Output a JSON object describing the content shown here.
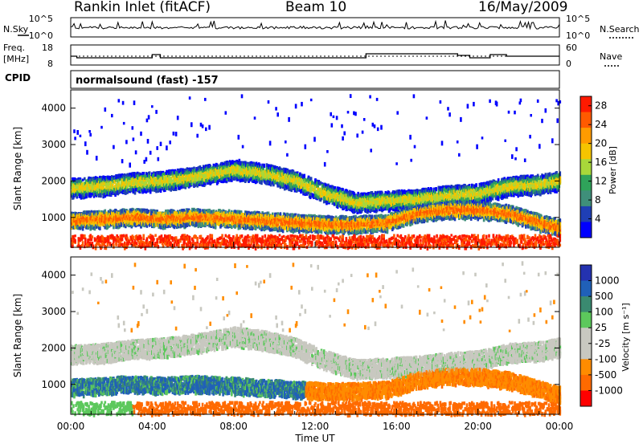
{
  "header": {
    "radar": "Rankin Inlet (fitACF)",
    "beam": "Beam 10",
    "date": "16/May/2009"
  },
  "top_panels": {
    "nsky_label": "N.Sky",
    "nsky_ticks": [
      "10^5",
      "10^0"
    ],
    "nsearch_label": "N.Search",
    "nsearch_ticks": [
      "10^5",
      "10^0"
    ],
    "freq_label": "Freq.",
    "freq_unit": "[MHz]",
    "freq_ticks": [
      "18",
      "8"
    ],
    "nave_label": "Nave",
    "nave_ticks": [
      "60",
      "0"
    ],
    "cpid_label": "CPID",
    "cpid_value": "normalsound (fast) -157"
  },
  "colors": {
    "power_scale": [
      "#0000ff",
      "#1f3fb5",
      "#3f8f7a",
      "#2fa35a",
      "#a8d83a",
      "#f5c400",
      "#ff9b00",
      "#ff5a00",
      "#ff1a00"
    ],
    "velocity_scale": [
      "#2432b0",
      "#2060b8",
      "#3a8a70",
      "#5cc85c",
      "#c8c8c0",
      "#c8c8c0",
      "#ff8c00",
      "#ff6a00",
      "#ff0000"
    ]
  },
  "chart_data": [
    {
      "type": "heatmap",
      "title": "",
      "xlabel": "",
      "ylabel": "Slant Range [km]",
      "x_range_hours": [
        0,
        24
      ],
      "ylim": [
        180,
        4500
      ],
      "y_ticks": [
        "1000",
        "2000",
        "3000",
        "4000"
      ],
      "colorbar": {
        "label": "Power [dB]",
        "ticks": [
          "4",
          "8",
          "12",
          "16",
          "20",
          "24",
          "28"
        ],
        "range": [
          0,
          30
        ]
      },
      "bands": [
        {
          "name": "upper",
          "center_km": [
            1850,
            1900,
            2000,
            2050,
            2150,
            2350,
            2250,
            2050,
            1700,
            1450,
            1500,
            1550,
            1650,
            1700,
            1900,
            1950,
            2050
          ],
          "hours": [
            0,
            1.5,
            3,
            4.5,
            6,
            8,
            9.5,
            11,
            12.5,
            14,
            15.5,
            17,
            18.5,
            20,
            21.5,
            23,
            24
          ]
        },
        {
          "name": "lower",
          "center_km": [
            950,
            1000,
            1050,
            1000,
            1050,
            1000,
            950,
            900,
            850,
            850,
            900,
            1150,
            1250,
            1250,
            1150,
            900,
            750
          ],
          "hours": [
            0,
            1.5,
            3,
            4.5,
            6,
            8,
            9.5,
            11,
            12.5,
            14,
            15.5,
            17,
            18.5,
            20,
            21.5,
            23,
            24
          ]
        }
      ]
    },
    {
      "type": "heatmap",
      "title": "",
      "xlabel": "Time UT",
      "ylabel": "Slant Range [km]",
      "x_range_hours": [
        0,
        24
      ],
      "ylim": [
        180,
        4500
      ],
      "y_ticks": [
        "1000",
        "2000",
        "3000",
        "4000"
      ],
      "x_ticks": [
        "00:00",
        "04:00",
        "08:00",
        "12:00",
        "16:00",
        "20:00",
        "00:00"
      ],
      "colorbar": {
        "label": "Velocity [m s⁻¹]",
        "ticks": [
          "1000",
          "500",
          "100",
          "25",
          "-25",
          "-100",
          "-500",
          "-1000"
        ]
      }
    }
  ]
}
